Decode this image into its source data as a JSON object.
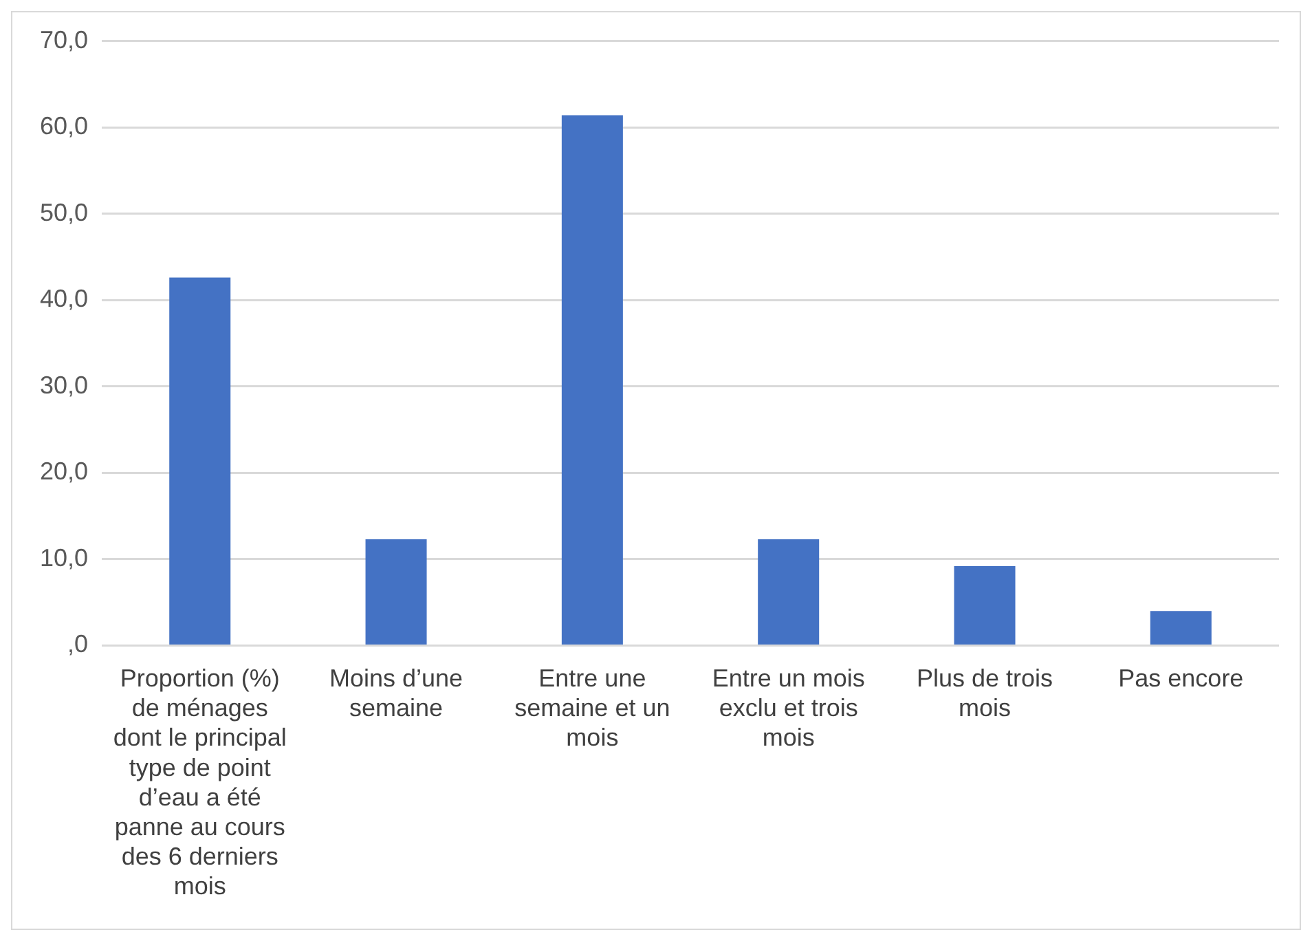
{
  "chart_data": {
    "type": "bar",
    "categories": [
      "Proportion (%) de ménages dont le principal type de point d’eau a été panne au cours des 6 derniers mois",
      "Moins d’une semaine",
      "Entre une semaine et un mois",
      "Entre un mois exclu et trois mois",
      "Plus de trois mois",
      "Pas encore"
    ],
    "values": [
      42.6,
      12.3,
      61.4,
      12.3,
      9.2,
      4.0
    ],
    "color": "#4472c4",
    "ylim": [
      0,
      70
    ],
    "yticks": [
      {
        "value": 0,
        "label": ",0"
      },
      {
        "value": 10,
        "label": "10,0"
      },
      {
        "value": 20,
        "label": "20,0"
      },
      {
        "value": 30,
        "label": "30,0"
      },
      {
        "value": 40,
        "label": "40,0"
      },
      {
        "value": 50,
        "label": "50,0"
      },
      {
        "value": 60,
        "label": "60,0"
      },
      {
        "value": 70,
        "label": "70,0"
      }
    ],
    "grid": "y",
    "legend": false
  }
}
